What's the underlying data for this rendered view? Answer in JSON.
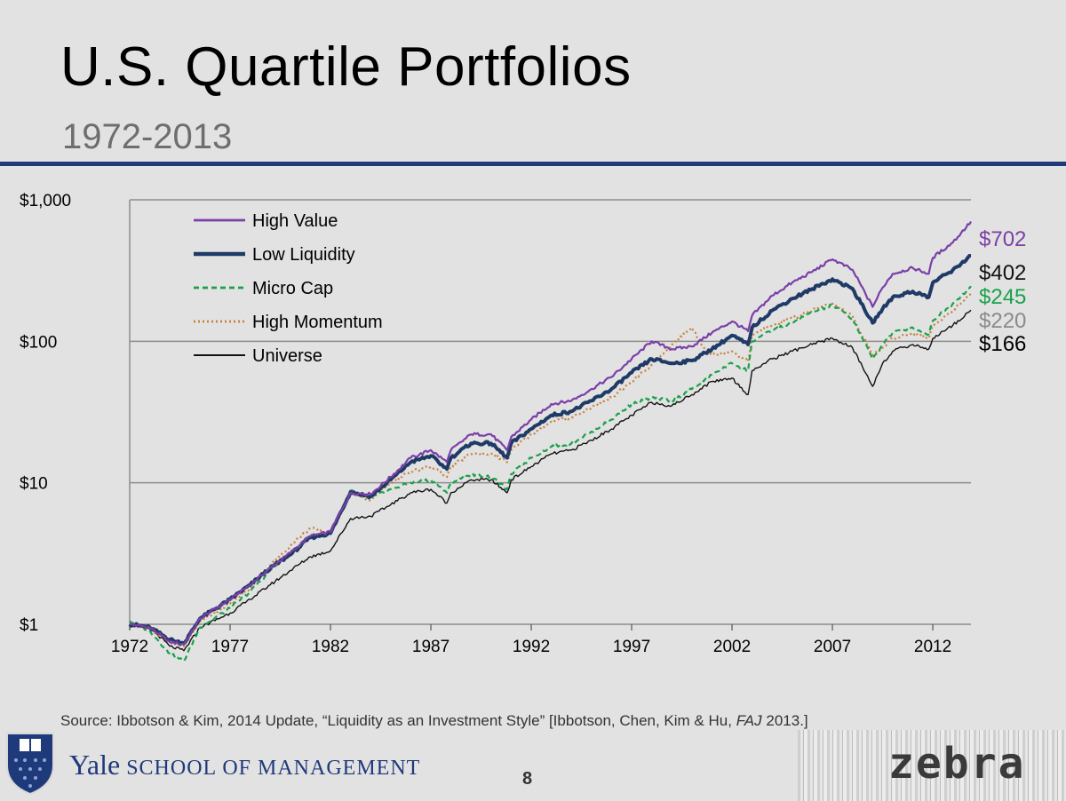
{
  "slide": {
    "title": "U.S. Quartile Portfolios",
    "subtitle": "1972-2013",
    "source_prefix": "Source: Ibbotson & Kim, 2014 Update, “Liquidity as an Investment Style” [Ibbotson, Chen, Kim & Hu, ",
    "source_journal": "FAJ",
    "source_suffix": " 2013.]",
    "footer_brand_big": "Yale",
    "footer_brand_small": " SCHOOL OF MANAGEMENT",
    "page_number": "8",
    "partner_logo_text": "zebra",
    "colors": {
      "rule": "#1f3a7a",
      "brand": "#1f3a7a"
    }
  },
  "chart_data": {
    "type": "line",
    "title": "",
    "xlabel": "",
    "ylabel": "",
    "y_scale": "log",
    "ylim": [
      1,
      1000
    ],
    "xlim": [
      1972,
      2013.9
    ],
    "x_ticks": [
      1972,
      1977,
      1982,
      1987,
      1992,
      1997,
      2002,
      2007,
      2012
    ],
    "x_tick_labels": [
      "1972",
      "1977",
      "1982",
      "1987",
      "1992",
      "1997",
      "2002",
      "2007",
      "2012"
    ],
    "y_ticks": [
      1,
      10,
      100,
      1000
    ],
    "y_tick_labels": [
      "$1",
      "$10",
      "$100",
      "$1,000"
    ],
    "grid": "horizontal",
    "legend_position": "top-left",
    "series": [
      {
        "name": "High Value",
        "color": "#7b3fa8",
        "dash": "solid",
        "width": 2.2,
        "end_label": "$702",
        "points": [
          [
            1972,
            1.0
          ],
          [
            1973,
            0.95
          ],
          [
            1974,
            0.75
          ],
          [
            1974.7,
            0.72
          ],
          [
            1975.5,
            1.1
          ],
          [
            1977,
            1.5
          ],
          [
            1978,
            1.9
          ],
          [
            1979,
            2.5
          ],
          [
            1980,
            3.2
          ],
          [
            1981,
            4.2
          ],
          [
            1982,
            4.5
          ],
          [
            1983,
            8.5
          ],
          [
            1984,
            8.3
          ],
          [
            1985,
            11
          ],
          [
            1986,
            15
          ],
          [
            1987,
            17
          ],
          [
            1987.8,
            14
          ],
          [
            1988,
            17
          ],
          [
            1989,
            22
          ],
          [
            1990,
            22
          ],
          [
            1990.8,
            17
          ],
          [
            1991,
            21
          ],
          [
            1992,
            28
          ],
          [
            1993,
            36
          ],
          [
            1994,
            38
          ],
          [
            1995,
            46
          ],
          [
            1996,
            56
          ],
          [
            1997,
            75
          ],
          [
            1998,
            100
          ],
          [
            1999,
            88
          ],
          [
            2000,
            92
          ],
          [
            2001,
            115
          ],
          [
            2002,
            138
          ],
          [
            2002.8,
            118
          ],
          [
            2003,
            152
          ],
          [
            2004,
            210
          ],
          [
            2005,
            260
          ],
          [
            2006,
            310
          ],
          [
            2007,
            380
          ],
          [
            2008,
            320
          ],
          [
            2009,
            175
          ],
          [
            2009.5,
            240
          ],
          [
            2010,
            300
          ],
          [
            2011,
            330
          ],
          [
            2011.8,
            300
          ],
          [
            2012,
            390
          ],
          [
            2013,
            500
          ],
          [
            2013.9,
            702
          ]
        ]
      },
      {
        "name": "Low Liquidity",
        "color": "#1f3a66",
        "dash": "solid",
        "width": 4,
        "end_label": "$402",
        "points": [
          [
            1972,
            1.0
          ],
          [
            1973,
            0.95
          ],
          [
            1974,
            0.78
          ],
          [
            1974.7,
            0.73
          ],
          [
            1975.5,
            1.1
          ],
          [
            1977,
            1.5
          ],
          [
            1978,
            1.9
          ],
          [
            1979,
            2.5
          ],
          [
            1980,
            3.1
          ],
          [
            1981,
            4.1
          ],
          [
            1982,
            4.4
          ],
          [
            1983,
            8.6
          ],
          [
            1984,
            8.0
          ],
          [
            1985,
            10.5
          ],
          [
            1986,
            14
          ],
          [
            1987,
            15.5
          ],
          [
            1987.8,
            12.5
          ],
          [
            1988,
            15
          ],
          [
            1989,
            19
          ],
          [
            1990,
            19
          ],
          [
            1990.8,
            15
          ],
          [
            1991,
            19
          ],
          [
            1992,
            24
          ],
          [
            1993,
            30
          ],
          [
            1994,
            32
          ],
          [
            1995,
            38
          ],
          [
            1996,
            46
          ],
          [
            1997,
            60
          ],
          [
            1998,
            75
          ],
          [
            1999,
            70
          ],
          [
            2000,
            73
          ],
          [
            2001,
            88
          ],
          [
            2002,
            110
          ],
          [
            2002.8,
            95
          ],
          [
            2003,
            125
          ],
          [
            2004,
            165
          ],
          [
            2005,
            200
          ],
          [
            2006,
            235
          ],
          [
            2007,
            275
          ],
          [
            2008,
            235
          ],
          [
            2009,
            135
          ],
          [
            2009.5,
            170
          ],
          [
            2010,
            205
          ],
          [
            2011,
            225
          ],
          [
            2011.8,
            205
          ],
          [
            2012,
            260
          ],
          [
            2013,
            320
          ],
          [
            2013.9,
            402
          ]
        ]
      },
      {
        "name": "Micro Cap",
        "color": "#1aa14a",
        "dash": "6,4",
        "width": 2.2,
        "end_label": "$245",
        "points": [
          [
            1972,
            1.05
          ],
          [
            1973,
            0.9
          ],
          [
            1974,
            0.62
          ],
          [
            1974.7,
            0.55
          ],
          [
            1975.5,
            0.95
          ],
          [
            1977,
            1.3
          ],
          [
            1978,
            1.7
          ],
          [
            1979,
            2.4
          ],
          [
            1980,
            3.2
          ],
          [
            1981,
            4.3
          ],
          [
            1982,
            4.4
          ],
          [
            1983,
            8.8
          ],
          [
            1984,
            7.8
          ],
          [
            1985,
            9.0
          ],
          [
            1986,
            10
          ],
          [
            1987,
            10.5
          ],
          [
            1987.8,
            8.5
          ],
          [
            1988,
            10
          ],
          [
            1989,
            11.5
          ],
          [
            1990,
            11
          ],
          [
            1990.8,
            9
          ],
          [
            1991,
            11.5
          ],
          [
            1992,
            15
          ],
          [
            1993,
            18
          ],
          [
            1994,
            19
          ],
          [
            1995,
            23
          ],
          [
            1996,
            28
          ],
          [
            1997,
            36
          ],
          [
            1998,
            40
          ],
          [
            1999,
            38
          ],
          [
            2000,
            46
          ],
          [
            2001,
            58
          ],
          [
            2002,
            70
          ],
          [
            2002.8,
            62
          ],
          [
            2003,
            100
          ],
          [
            2004,
            120
          ],
          [
            2005,
            135
          ],
          [
            2006,
            160
          ],
          [
            2007,
            180
          ],
          [
            2008,
            145
          ],
          [
            2009,
            75
          ],
          [
            2009.5,
            95
          ],
          [
            2010,
            115
          ],
          [
            2011,
            125
          ],
          [
            2011.8,
            112
          ],
          [
            2012,
            140
          ],
          [
            2013,
            185
          ],
          [
            2013.9,
            245
          ]
        ]
      },
      {
        "name": "High Momentum",
        "color": "#c8803c",
        "dash": "2,3",
        "width": 2.2,
        "end_label": "$220",
        "points": [
          [
            1972,
            1.0
          ],
          [
            1973,
            0.92
          ],
          [
            1974,
            0.75
          ],
          [
            1974.7,
            0.7
          ],
          [
            1975.5,
            1.05
          ],
          [
            1977,
            1.4
          ],
          [
            1978,
            1.8
          ],
          [
            1979,
            2.6
          ],
          [
            1980,
            3.6
          ],
          [
            1981,
            4.8
          ],
          [
            1982,
            4.3
          ],
          [
            1983,
            8.4
          ],
          [
            1984,
            7.5
          ],
          [
            1985,
            10
          ],
          [
            1986,
            12
          ],
          [
            1987,
            13
          ],
          [
            1987.8,
            11
          ],
          [
            1988,
            13
          ],
          [
            1989,
            16
          ],
          [
            1990,
            16
          ],
          [
            1990.8,
            14
          ],
          [
            1991,
            17
          ],
          [
            1992,
            22
          ],
          [
            1993,
            27
          ],
          [
            1994,
            29
          ],
          [
            1995,
            34
          ],
          [
            1996,
            40
          ],
          [
            1997,
            52
          ],
          [
            1998,
            68
          ],
          [
            1999,
            95
          ],
          [
            2000,
            125
          ],
          [
            2000.6,
            90
          ],
          [
            2001,
            80
          ],
          [
            2002,
            85
          ],
          [
            2002.8,
            72
          ],
          [
            2003,
            110
          ],
          [
            2004,
            130
          ],
          [
            2005,
            145
          ],
          [
            2006,
            165
          ],
          [
            2007,
            185
          ],
          [
            2008,
            150
          ],
          [
            2009,
            80
          ],
          [
            2009.5,
            90
          ],
          [
            2010,
            105
          ],
          [
            2011,
            115
          ],
          [
            2011.8,
            105
          ],
          [
            2012,
            130
          ],
          [
            2013,
            165
          ],
          [
            2013.9,
            220
          ]
        ]
      },
      {
        "name": "Universe",
        "color": "#111111",
        "dash": "solid",
        "width": 1.4,
        "end_label": "$166",
        "points": [
          [
            1972,
            1.0
          ],
          [
            1973,
            0.95
          ],
          [
            1974,
            0.7
          ],
          [
            1974.7,
            0.65
          ],
          [
            1975.5,
            0.95
          ],
          [
            1977,
            1.2
          ],
          [
            1978,
            1.5
          ],
          [
            1979,
            1.9
          ],
          [
            1980,
            2.4
          ],
          [
            1981,
            3.0
          ],
          [
            1982,
            3.3
          ],
          [
            1983,
            5.6
          ],
          [
            1984,
            5.8
          ],
          [
            1985,
            7.0
          ],
          [
            1986,
            8.5
          ],
          [
            1987,
            9.0
          ],
          [
            1987.8,
            7.2
          ],
          [
            1988,
            8.5
          ],
          [
            1989,
            10.5
          ],
          [
            1990,
            10.5
          ],
          [
            1990.8,
            8.5
          ],
          [
            1991,
            10.5
          ],
          [
            1992,
            13
          ],
          [
            1993,
            16
          ],
          [
            1994,
            17
          ],
          [
            1995,
            20
          ],
          [
            1996,
            24
          ],
          [
            1997,
            30
          ],
          [
            1998,
            37
          ],
          [
            1999,
            35
          ],
          [
            2000,
            42
          ],
          [
            2001,
            52
          ],
          [
            2002,
            55
          ],
          [
            2002.8,
            42
          ],
          [
            2003,
            62
          ],
          [
            2004,
            75
          ],
          [
            2005,
            85
          ],
          [
            2006,
            95
          ],
          [
            2007,
            105
          ],
          [
            2008,
            90
          ],
          [
            2009,
            48
          ],
          [
            2009.5,
            70
          ],
          [
            2010,
            85
          ],
          [
            2011,
            95
          ],
          [
            2011.8,
            88
          ],
          [
            2012,
            105
          ],
          [
            2013,
            130
          ],
          [
            2013.9,
            166
          ]
        ]
      }
    ]
  }
}
